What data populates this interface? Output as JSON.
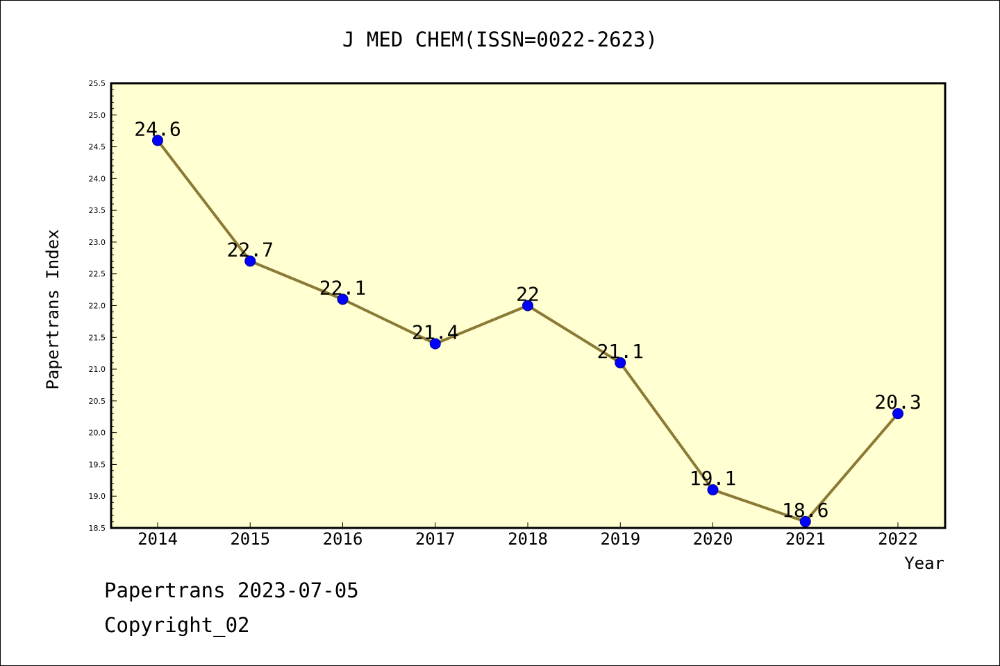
{
  "chart_data": {
    "type": "line",
    "title": "J MED CHEM(ISSN=0022-2623)",
    "xlabel": "Year",
    "ylabel": "Papertrans Index",
    "categories": [
      "2014",
      "2015",
      "2016",
      "2017",
      "2018",
      "2019",
      "2020",
      "2021",
      "2022"
    ],
    "series": [
      {
        "values": [
          24.6,
          22.7,
          22.1,
          21.4,
          22.0,
          21.1,
          19.1,
          18.6,
          20.3
        ],
        "labels": [
          "24.6",
          "22.7",
          "22.1",
          "21.4",
          "22",
          "21.1",
          "19.1",
          "18.6",
          "20.3"
        ]
      }
    ],
    "ylim": [
      18.5,
      25.5
    ],
    "yticks": [
      "18.5",
      "19.0",
      "19.5",
      "20.0",
      "20.5",
      "21.0",
      "21.5",
      "22.0",
      "22.5",
      "23.0",
      "23.5",
      "24.0",
      "24.5",
      "25.0",
      "25.5"
    ],
    "grid": false,
    "colors": {
      "plot_background": "#ffffd2",
      "line": "#8b7a35",
      "marker": "#0000ff"
    }
  },
  "footer": {
    "line1": "Papertrans 2023-07-05",
    "line2": "Copyright_02"
  }
}
